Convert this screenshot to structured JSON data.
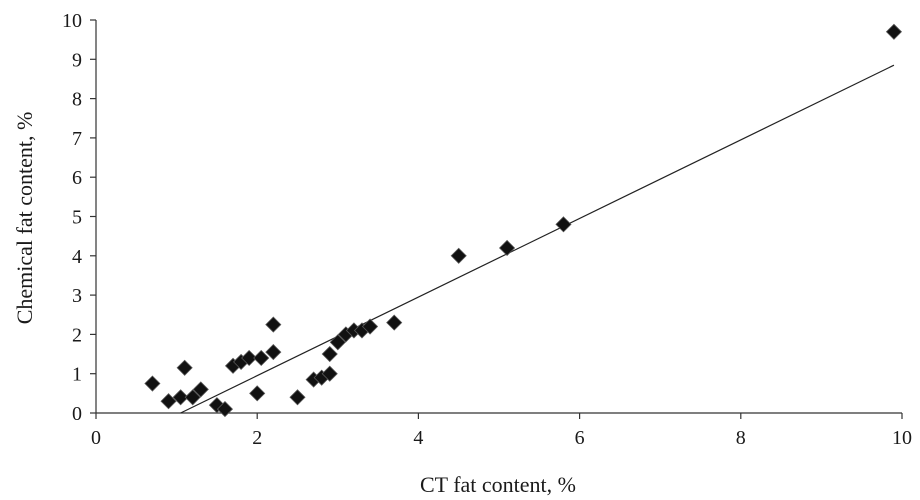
{
  "chart_data": {
    "type": "scatter",
    "xlabel": "CT fat content, %",
    "ylabel": "Chemical fat content, %",
    "xlim": [
      0,
      10
    ],
    "ylim": [
      0,
      10
    ],
    "x_ticks": [
      "0",
      "2",
      "4",
      "6",
      "8",
      "10"
    ],
    "y_ticks": [
      "0",
      "1",
      "2",
      "3",
      "4",
      "5",
      "6",
      "7",
      "8",
      "9",
      "10"
    ],
    "grid": false,
    "legend": "none",
    "marker": "diamond",
    "colors": {
      "points": "#111111",
      "trendline": "#222222",
      "axes": "#333333"
    },
    "points": [
      [
        0.7,
        0.75
      ],
      [
        0.9,
        0.3
      ],
      [
        1.05,
        0.4
      ],
      [
        1.1,
        1.15
      ],
      [
        1.2,
        0.4
      ],
      [
        1.3,
        0.6
      ],
      [
        1.5,
        0.2
      ],
      [
        1.6,
        0.1
      ],
      [
        1.7,
        1.2
      ],
      [
        1.8,
        1.3
      ],
      [
        1.9,
        1.4
      ],
      [
        2.0,
        0.5
      ],
      [
        2.05,
        1.4
      ],
      [
        2.2,
        1.55
      ],
      [
        2.2,
        2.25
      ],
      [
        2.5,
        0.4
      ],
      [
        2.7,
        0.85
      ],
      [
        2.8,
        0.9
      ],
      [
        2.9,
        1.0
      ],
      [
        2.9,
        1.5
      ],
      [
        3.0,
        1.8
      ],
      [
        3.1,
        2.0
      ],
      [
        3.2,
        2.1
      ],
      [
        3.3,
        2.1
      ],
      [
        3.4,
        2.2
      ],
      [
        3.7,
        2.3
      ],
      [
        4.5,
        4.0
      ],
      [
        5.1,
        4.2
      ],
      [
        5.8,
        4.8
      ],
      [
        9.9,
        9.7
      ]
    ],
    "trendline": {
      "x": [
        1.05,
        9.9
      ],
      "y": [
        0.0,
        8.85
      ]
    }
  }
}
